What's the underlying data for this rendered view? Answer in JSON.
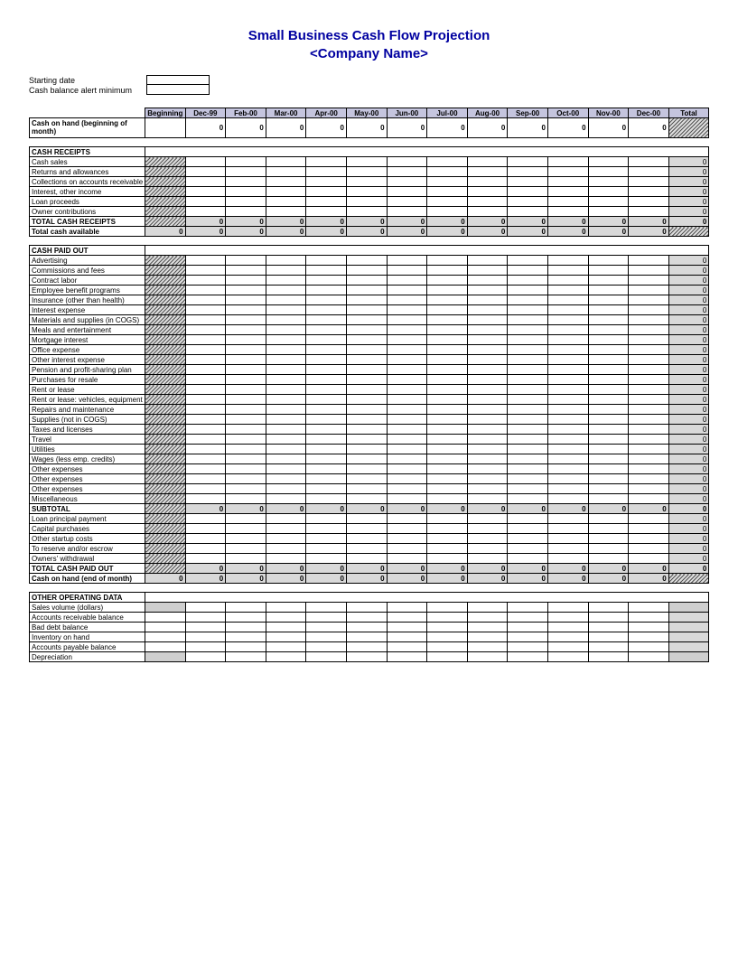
{
  "title_line1": "Small Business Cash Flow Projection",
  "title_line2": "<Company Name>",
  "meta": {
    "starting_date_label": "Starting date",
    "min_alert_label": "Cash balance alert minimum"
  },
  "columns": [
    "Beginning",
    "Dec-99",
    "Feb-00",
    "Mar-00",
    "Apr-00",
    "May-00",
    "Jun-00",
    "Jul-00",
    "Aug-00",
    "Sep-00",
    "Oct-00",
    "Nov-00",
    "Dec-00",
    "Total"
  ],
  "colors": {
    "title": "#0000a0",
    "header_bg": "#c5c5de",
    "shaded": "#d9d9d9",
    "border": "#000000",
    "hatch_dark": "#555555",
    "hatch_light": "#dddddd"
  },
  "zero": "0",
  "rows": {
    "cash_on_hand_begin": "Cash on hand (beginning of month)",
    "cash_receipts_header": "CASH RECEIPTS",
    "receipts": [
      "Cash sales",
      "Returns and allowances",
      "Collections on accounts receivable",
      "Interest, other income",
      "Loan proceeds",
      "Owner contributions"
    ],
    "total_cash_receipts": "TOTAL CASH RECEIPTS",
    "total_cash_available": "Total cash available",
    "cash_paid_header": "CASH PAID OUT",
    "paid": [
      "Advertising",
      "Commissions and fees",
      "Contract labor",
      "Employee benefit programs",
      "Insurance (other than health)",
      "Interest expense",
      "Materials and supplies (in COGS)",
      "Meals and entertainment",
      "Mortgage interest",
      "Office expense",
      "Other interest expense",
      "Pension and profit-sharing plan",
      "Purchases for resale",
      "Rent or lease",
      "Rent or lease: vehicles, equipment",
      "Repairs and maintenance",
      "Supplies (not in COGS)",
      "Taxes and licenses",
      "Travel",
      "Utilities",
      "Wages (less emp. credits)",
      "Other expenses",
      "Other expenses",
      "Other expenses",
      "Miscellaneous"
    ],
    "subtotal": "SUBTOTAL",
    "below_subtotal": [
      "Loan principal payment",
      "Capital purchases",
      "Other startup costs",
      "To reserve and/or escrow",
      "Owners' withdrawal"
    ],
    "total_cash_paid": "TOTAL CASH PAID OUT",
    "cash_on_hand_end": "Cash on hand (end of month)",
    "other_op_header": "OTHER OPERATING DATA",
    "other_op": [
      "Sales volume (dollars)",
      "Accounts receivable balance",
      "Bad debt balance",
      "Inventory on hand",
      "Accounts payable balance",
      "Depreciation"
    ]
  }
}
